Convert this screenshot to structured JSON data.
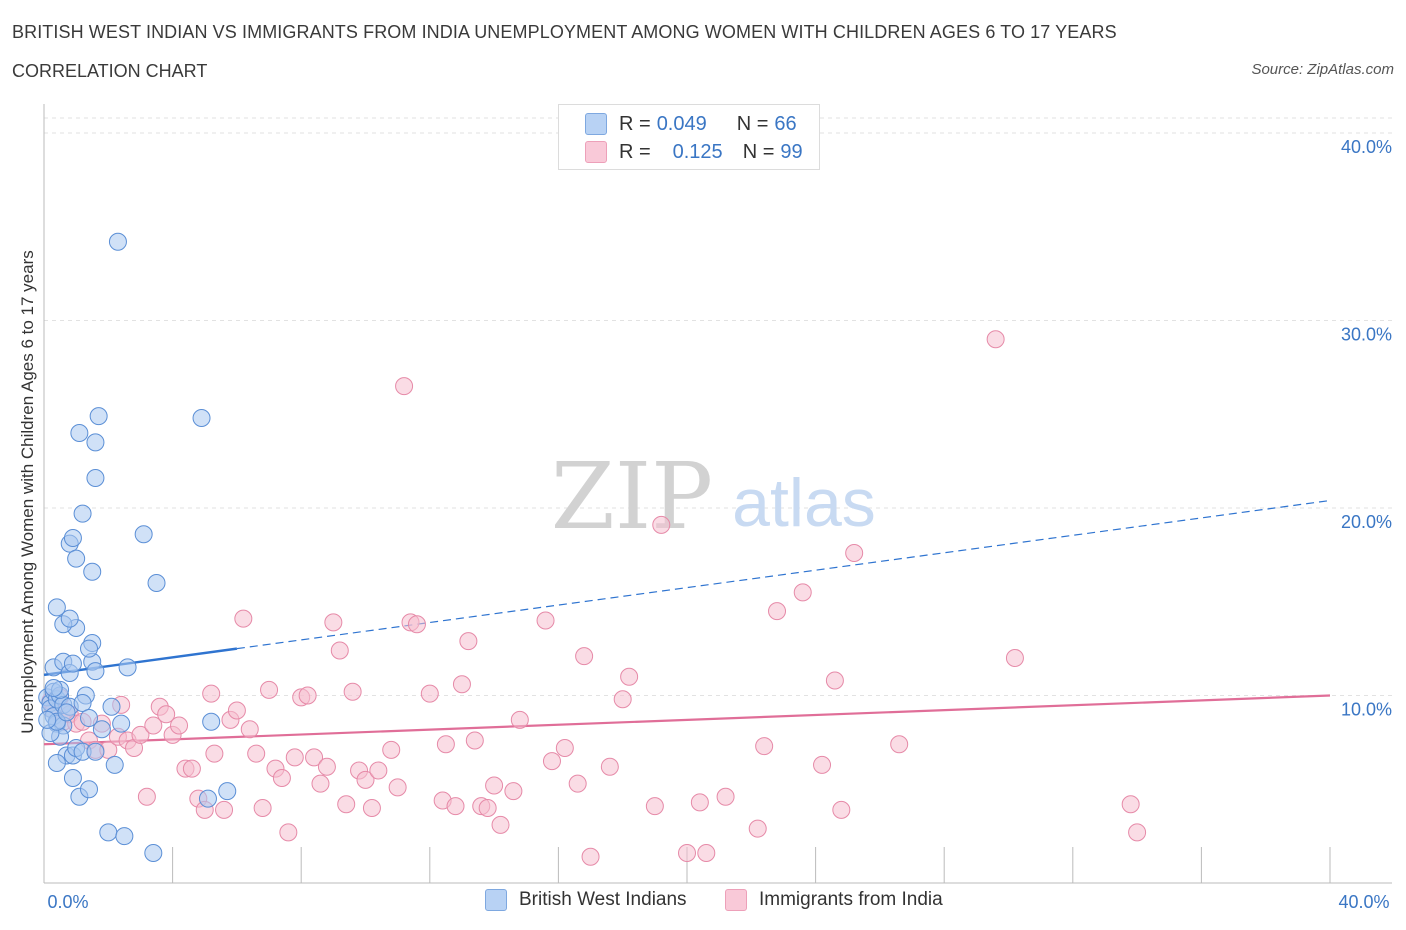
{
  "title": "BRITISH WEST INDIAN VS IMMIGRANTS FROM INDIA UNEMPLOYMENT AMONG WOMEN WITH CHILDREN AGES 6 TO 17 YEARS",
  "subtitle": "CORRELATION CHART",
  "source": "Source: ZipAtlas.com",
  "watermark": {
    "zip": "ZIP",
    "atlas": "atlas"
  },
  "legend": {
    "series1": {
      "r_label": "R =",
      "r_value": "0.049",
      "n_label": "N =",
      "n_value": "66"
    },
    "series2": {
      "r_label": "R =",
      "r_value": "0.125",
      "n_label": "N =",
      "n_value": "99"
    }
  },
  "bottom_legend": {
    "series1": "British West Indians",
    "series2": "Immigrants from India"
  },
  "colors": {
    "series1_fill": "#a9c8f0",
    "series1_stroke": "#5b8fd6",
    "series1_line": "#2f74d0",
    "series2_fill": "#f6bfd0",
    "series2_stroke": "#e68aa8",
    "series2_line": "#e06e98",
    "axis_text": "#3a76c4",
    "grid": "#e2e2e2"
  },
  "chart_data": {
    "type": "scatter",
    "title": "BRITISH WEST INDIAN VS IMMIGRANTS FROM INDIA UNEMPLOYMENT AMONG WOMEN WITH CHILDREN AGES 6 TO 17 YEARS",
    "xlabel": "",
    "ylabel": "Unemployment Among Women with Children Ages 6 to 17 years",
    "xlim": [
      0,
      40
    ],
    "ylim": [
      0,
      40
    ],
    "x_tick_labels": [
      "0.0%",
      "40.0%"
    ],
    "y_ticks": [
      10,
      20,
      30,
      40
    ],
    "y_tick_labels": [
      "10.0%",
      "20.0%",
      "30.0%",
      "40.0%"
    ],
    "grid": true,
    "series": [
      {
        "name": "British West Indians",
        "trend": {
          "x_solid": [
            0,
            6
          ],
          "y_solid": [
            11.1,
            12.5
          ],
          "x_dashed": [
            6,
            40
          ],
          "y_dashed": [
            12.5,
            20.4
          ]
        },
        "points": [
          [
            0.1,
            9.9
          ],
          [
            0.2,
            9.6
          ],
          [
            0.3,
            10.2
          ],
          [
            0.2,
            9.3
          ],
          [
            0.4,
            9.8
          ],
          [
            0.5,
            10.0
          ],
          [
            0.3,
            8.9
          ],
          [
            0.4,
            8.5
          ],
          [
            0.6,
            8.4
          ],
          [
            0.6,
            9.5
          ],
          [
            0.8,
            9.4
          ],
          [
            0.5,
            7.8
          ],
          [
            0.7,
            6.8
          ],
          [
            0.4,
            6.4
          ],
          [
            0.9,
            6.8
          ],
          [
            1.0,
            7.2
          ],
          [
            1.2,
            7.0
          ],
          [
            0.9,
            5.6
          ],
          [
            1.1,
            4.6
          ],
          [
            1.4,
            5.0
          ],
          [
            0.3,
            11.5
          ],
          [
            0.6,
            11.8
          ],
          [
            0.8,
            11.2
          ],
          [
            0.9,
            11.7
          ],
          [
            1.5,
            11.8
          ],
          [
            1.6,
            11.3
          ],
          [
            1.5,
            12.8
          ],
          [
            1.4,
            12.5
          ],
          [
            1.0,
            13.6
          ],
          [
            0.6,
            13.8
          ],
          [
            0.8,
            14.1
          ],
          [
            0.4,
            14.7
          ],
          [
            0.8,
            18.1
          ],
          [
            0.9,
            18.4
          ],
          [
            1.0,
            17.3
          ],
          [
            1.5,
            16.6
          ],
          [
            1.2,
            19.7
          ],
          [
            1.1,
            24.0
          ],
          [
            1.6,
            23.5
          ],
          [
            1.6,
            21.6
          ],
          [
            1.7,
            24.9
          ],
          [
            2.3,
            34.2
          ],
          [
            3.1,
            18.6
          ],
          [
            3.5,
            16.0
          ],
          [
            4.9,
            24.8
          ],
          [
            2.6,
            11.5
          ],
          [
            2.1,
            9.4
          ],
          [
            1.3,
            10.0
          ],
          [
            1.2,
            9.6
          ],
          [
            1.4,
            8.8
          ],
          [
            2.4,
            8.5
          ],
          [
            2.2,
            6.3
          ],
          [
            2.0,
            2.7
          ],
          [
            2.5,
            2.5
          ],
          [
            3.4,
            1.6
          ],
          [
            5.1,
            4.5
          ],
          [
            5.7,
            4.9
          ],
          [
            5.2,
            8.6
          ],
          [
            0.2,
            8.0
          ],
          [
            0.4,
            8.6
          ],
          [
            0.7,
            9.1
          ],
          [
            0.5,
            10.3
          ],
          [
            1.8,
            8.2
          ],
          [
            1.6,
            7.0
          ],
          [
            0.3,
            10.4
          ],
          [
            0.1,
            8.7
          ]
        ]
      },
      {
        "name": "Immigrants from India",
        "trend": {
          "x": [
            0,
            40
          ],
          "y": [
            7.4,
            10.0
          ]
        },
        "points": [
          [
            0.2,
            9.7
          ],
          [
            0.3,
            9.2
          ],
          [
            0.5,
            9.9
          ],
          [
            0.6,
            8.6
          ],
          [
            0.8,
            9.0
          ],
          [
            1.0,
            8.5
          ],
          [
            1.2,
            8.6
          ],
          [
            1.4,
            7.6
          ],
          [
            1.6,
            7.1
          ],
          [
            1.8,
            8.5
          ],
          [
            2.0,
            7.1
          ],
          [
            2.3,
            7.8
          ],
          [
            2.4,
            9.5
          ],
          [
            2.6,
            7.6
          ],
          [
            2.8,
            7.2
          ],
          [
            3.0,
            7.9
          ],
          [
            3.2,
            4.6
          ],
          [
            3.4,
            8.4
          ],
          [
            3.6,
            9.4
          ],
          [
            3.8,
            9.0
          ],
          [
            4.0,
            7.9
          ],
          [
            4.2,
            8.4
          ],
          [
            4.4,
            6.1
          ],
          [
            4.6,
            6.1
          ],
          [
            4.8,
            4.5
          ],
          [
            5.0,
            3.9
          ],
          [
            5.2,
            10.1
          ],
          [
            5.3,
            6.9
          ],
          [
            5.6,
            3.9
          ],
          [
            5.8,
            8.7
          ],
          [
            6.0,
            9.2
          ],
          [
            6.2,
            14.1
          ],
          [
            6.4,
            8.2
          ],
          [
            6.6,
            6.9
          ],
          [
            6.8,
            4.0
          ],
          [
            7.0,
            10.3
          ],
          [
            7.2,
            6.1
          ],
          [
            7.4,
            5.6
          ],
          [
            7.6,
            2.7
          ],
          [
            7.8,
            6.7
          ],
          [
            8.0,
            9.9
          ],
          [
            8.2,
            10.0
          ],
          [
            8.4,
            6.7
          ],
          [
            8.6,
            5.3
          ],
          [
            8.8,
            6.2
          ],
          [
            9.0,
            13.9
          ],
          [
            9.2,
            12.4
          ],
          [
            9.4,
            4.2
          ],
          [
            9.6,
            10.2
          ],
          [
            9.8,
            6.0
          ],
          [
            10.0,
            5.5
          ],
          [
            10.2,
            4.0
          ],
          [
            10.4,
            6.0
          ],
          [
            10.8,
            7.1
          ],
          [
            11.0,
            5.1
          ],
          [
            11.2,
            26.5
          ],
          [
            11.4,
            13.9
          ],
          [
            11.6,
            13.8
          ],
          [
            12.0,
            10.1
          ],
          [
            12.4,
            4.4
          ],
          [
            12.5,
            7.4
          ],
          [
            12.8,
            4.1
          ],
          [
            13.0,
            10.6
          ],
          [
            13.2,
            12.9
          ],
          [
            13.4,
            7.6
          ],
          [
            13.6,
            4.1
          ],
          [
            13.8,
            4.0
          ],
          [
            14.0,
            5.2
          ],
          [
            14.2,
            3.1
          ],
          [
            14.6,
            4.9
          ],
          [
            14.8,
            8.7
          ],
          [
            15.6,
            14.0
          ],
          [
            15.8,
            6.5
          ],
          [
            16.2,
            7.2
          ],
          [
            16.6,
            5.3
          ],
          [
            16.8,
            12.1
          ],
          [
            17.0,
            1.4
          ],
          [
            17.6,
            6.2
          ],
          [
            18.0,
            9.8
          ],
          [
            18.2,
            11.0
          ],
          [
            19.0,
            4.1
          ],
          [
            19.2,
            19.1
          ],
          [
            20.0,
            1.6
          ],
          [
            20.4,
            4.3
          ],
          [
            20.6,
            1.6
          ],
          [
            21.2,
            4.6
          ],
          [
            22.2,
            2.9
          ],
          [
            22.4,
            7.3
          ],
          [
            22.8,
            14.5
          ],
          [
            23.6,
            15.5
          ],
          [
            24.2,
            6.3
          ],
          [
            24.6,
            10.8
          ],
          [
            24.8,
            3.9
          ],
          [
            25.2,
            17.6
          ],
          [
            26.6,
            7.4
          ],
          [
            29.6,
            29.0
          ],
          [
            30.2,
            12.0
          ],
          [
            33.8,
            4.2
          ],
          [
            34.0,
            2.7
          ]
        ]
      }
    ]
  }
}
